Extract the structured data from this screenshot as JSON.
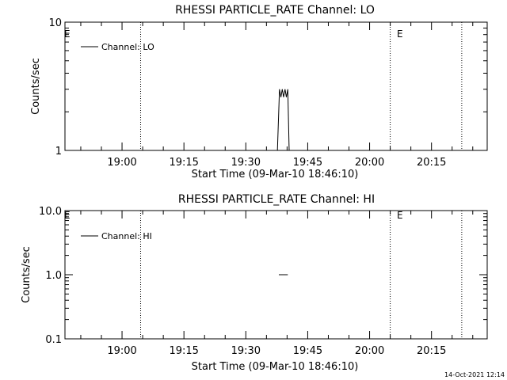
{
  "chart_data": [
    {
      "type": "line",
      "title": "RHESSI PARTICLE_RATE Channel: LO",
      "xlabel": "Start Time (09-Mar-10 18:46:10)",
      "ylabel": "Counts/sec",
      "x_unit": "time of day",
      "x_range": [
        "18:46:10",
        "20:28:30"
      ],
      "y_scale": "log",
      "ylim": [
        1,
        10
      ],
      "y_tick_labels": [
        "1",
        "10"
      ],
      "x_tick_labels": [
        "19:00",
        "19:15",
        "19:30",
        "19:45",
        "20:00",
        "20:15"
      ],
      "legend": {
        "position": "top-left",
        "entries": [
          "Channel: LO"
        ]
      },
      "flags": [
        {
          "label": "E",
          "time": "18:46:10"
        },
        {
          "label": "E",
          "time": "20:05:00"
        }
      ],
      "markers": [
        "19:04:30",
        "20:05:00",
        "20:22:20"
      ],
      "series": [
        {
          "name": "Channel: LO",
          "x": [
            "19:37:40",
            "19:38:10",
            "19:38:30",
            "19:38:50",
            "19:39:10",
            "19:39:30",
            "19:39:50",
            "19:40:10",
            "19:40:30"
          ],
          "y": [
            1,
            3,
            2.6,
            3,
            2.6,
            3,
            2.6,
            3,
            1
          ]
        }
      ]
    },
    {
      "type": "line",
      "title": "RHESSI PARTICLE_RATE Channel: HI",
      "xlabel": "Start Time (09-Mar-10 18:46:10)",
      "ylabel": "Counts/sec",
      "x_unit": "time of day",
      "x_range": [
        "18:46:10",
        "20:28:30"
      ],
      "y_scale": "log",
      "ylim": [
        0.1,
        10
      ],
      "y_tick_labels": [
        "0.1",
        "1.0",
        "10.0"
      ],
      "x_tick_labels": [
        "19:00",
        "19:15",
        "19:30",
        "19:45",
        "20:00",
        "20:15"
      ],
      "legend": {
        "position": "top-left",
        "entries": [
          "Channel: HI"
        ]
      },
      "flags": [
        {
          "label": "E",
          "time": "18:46:10"
        },
        {
          "label": "E",
          "time": "20:05:00"
        }
      ],
      "markers": [
        "19:04:30",
        "20:05:00",
        "20:22:20"
      ],
      "series": [
        {
          "name": "Channel: HI",
          "x": [
            "19:38:00",
            "19:40:10"
          ],
          "y": [
            1,
            1
          ]
        },
        {
          "name": "",
          "x": [
            "20:27:00",
            "20:28:30"
          ],
          "y": [
            1,
            1
          ]
        }
      ]
    }
  ],
  "timestamp": "14-Oct-2021 12:14"
}
